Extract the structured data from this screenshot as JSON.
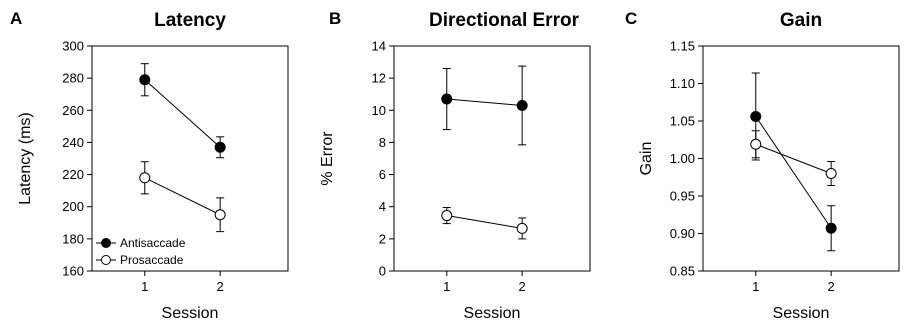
{
  "chart_data": [
    {
      "type": "line",
      "panel_letter": "A",
      "title": "Latency",
      "xlabel": "Session",
      "ylabel": "Latency (ms)",
      "categories": [
        "1",
        "2"
      ],
      "xlim": [
        0.3,
        2.9
      ],
      "ylim": [
        160,
        300
      ],
      "yticks": [
        160,
        180,
        200,
        220,
        240,
        260,
        280,
        300
      ],
      "tick_decimals": 0,
      "legend": {
        "position": "bottom-left"
      },
      "series": [
        {
          "name": "Antisaccade",
          "marker": "filled",
          "values": [
            279,
            237
          ],
          "errors": [
            10,
            6.5
          ]
        },
        {
          "name": "Prosaccade",
          "marker": "open",
          "values": [
            218,
            195
          ],
          "errors": [
            10,
            10.5
          ]
        }
      ]
    },
    {
      "type": "line",
      "panel_letter": "B",
      "title": "Directional Error",
      "xlabel": "Session",
      "ylabel": "% Error",
      "categories": [
        "1",
        "2"
      ],
      "xlim": [
        0.3,
        2.9
      ],
      "ylim": [
        0,
        14
      ],
      "yticks": [
        0,
        2,
        4,
        6,
        8,
        10,
        12,
        14
      ],
      "tick_decimals": 0,
      "series": [
        {
          "marker": "filled",
          "values": [
            10.7,
            10.3
          ],
          "errors": [
            1.9,
            2.45
          ]
        },
        {
          "marker": "open",
          "values": [
            3.45,
            2.65
          ],
          "errors": [
            0.5,
            0.65
          ]
        }
      ]
    },
    {
      "type": "line",
      "panel_letter": "C",
      "title": "Gain",
      "xlabel": "Session",
      "ylabel": "Gain",
      "categories": [
        "1",
        "2"
      ],
      "xlim": [
        0.3,
        2.9
      ],
      "ylim": [
        0.85,
        1.15
      ],
      "yticks": [
        0.85,
        0.9,
        0.95,
        1.0,
        1.05,
        1.1,
        1.15
      ],
      "tick_decimals": 2,
      "series": [
        {
          "marker": "filled",
          "values": [
            1.056,
            0.907
          ],
          "errors": [
            0.058,
            0.03
          ]
        },
        {
          "marker": "open",
          "values": [
            1.019,
            0.98
          ],
          "errors": [
            0.018,
            0.016
          ]
        }
      ]
    }
  ]
}
